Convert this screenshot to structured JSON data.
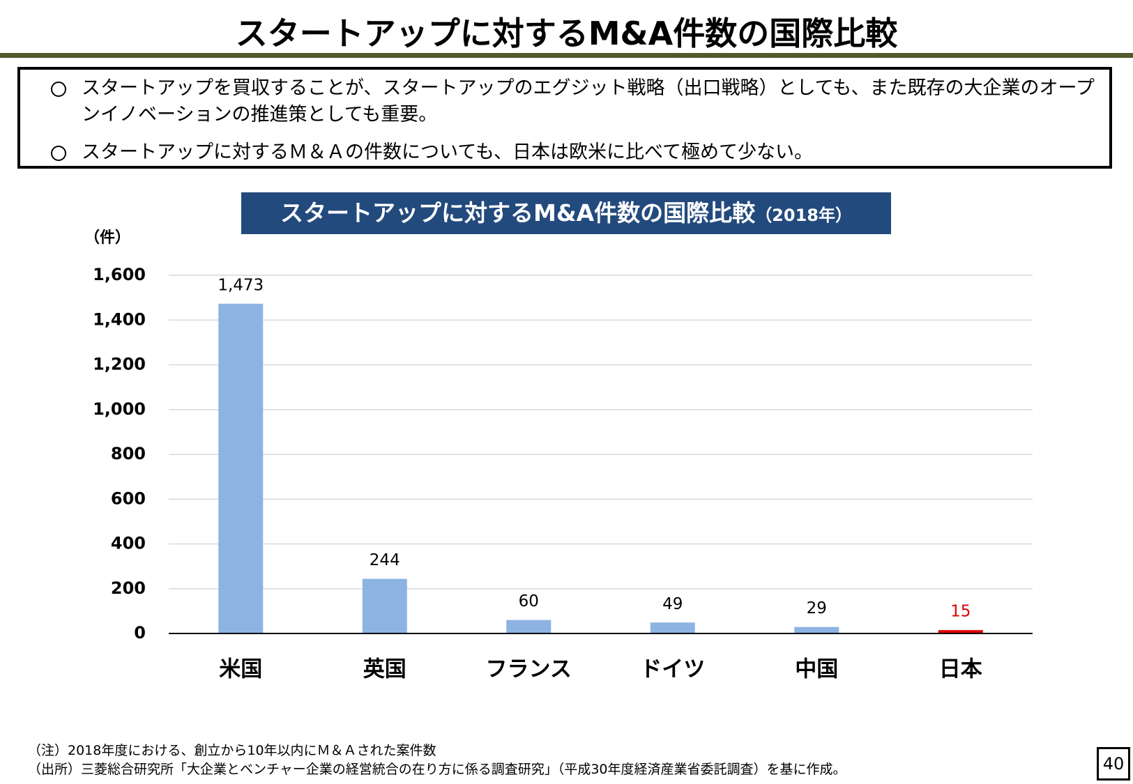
{
  "header": {
    "title": "スタートアップに対するM&A件数の国際比較"
  },
  "bullets": [
    "スタートアップを買収することが、スタートアップのエグジット戦略（出口戦略）としても、また既存の大企業のオープンイノベーションの推進策としても重要。",
    "スタートアップに対するＭ＆Ａの件数についても、日本は欧米に比べて極めて少ない。"
  ],
  "chart_data": {
    "type": "bar",
    "title": "スタートアップに対するM&A件数の国際比較",
    "subtitle": "（2018年）",
    "y_label": "（件）",
    "categories": [
      "米国",
      "英国",
      "フランス",
      "ドイツ",
      "中国",
      "日本"
    ],
    "values": [
      1473,
      244,
      60,
      49,
      29,
      15
    ],
    "value_labels": [
      "1,473",
      "244",
      "60",
      "49",
      "29",
      "15"
    ],
    "colors": [
      "#8db3e2",
      "#8db3e2",
      "#8db3e2",
      "#8db3e2",
      "#8db3e2",
      "#e00000"
    ],
    "value_label_colors": [
      "#000000",
      "#000000",
      "#000000",
      "#000000",
      "#000000",
      "#e00000"
    ],
    "ylim": [
      0,
      1600
    ],
    "yticks": [
      0,
      200,
      400,
      600,
      800,
      {
        "value": 1000,
        "label": "1,000"
      },
      {
        "value": 1200,
        "label": "1,200"
      },
      {
        "value": 1400,
        "label": "1,400"
      },
      {
        "value": 1600,
        "label": "1,600"
      }
    ],
    "grid": true
  },
  "footnotes": [
    "（注）2018年度における、創立から10年以内にＭ＆Ａされた案件数",
    "（出所）三菱総合研究所「大企業とベンチャー企業の経営統合の在り方に係る調査研究」（平成30年度経済産業省委託調査）を基に作成。"
  ],
  "page_number": "40"
}
